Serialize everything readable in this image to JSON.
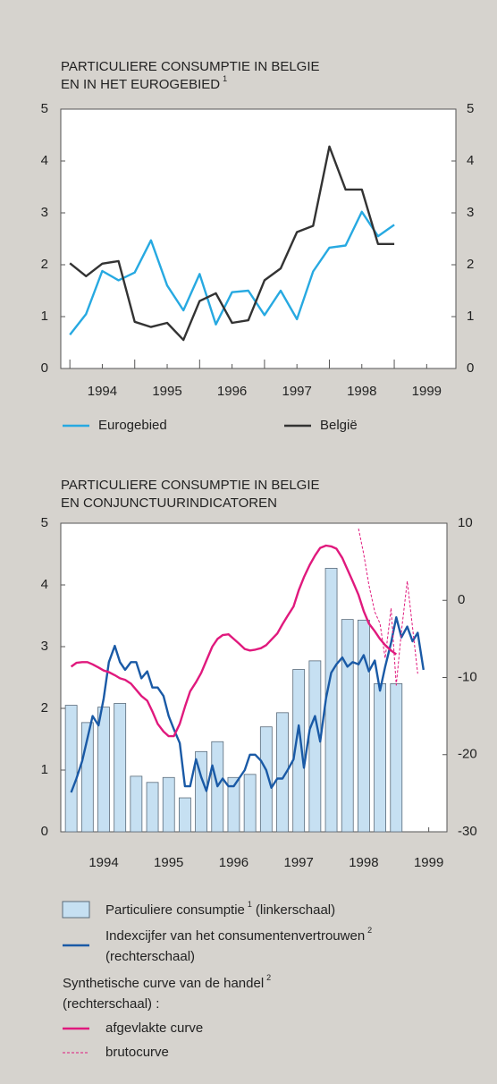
{
  "chart_data": [
    {
      "type": "line",
      "title": [
        "PARTICULIERE CONSUMPTIE IN BELGIE",
        "EN IN HET EUROGEBIED"
      ],
      "title_note": "1",
      "x": [
        1994,
        1994.25,
        1994.5,
        1994.75,
        1995,
        1995.25,
        1995.5,
        1995.75,
        1996,
        1996.25,
        1996.5,
        1996.75,
        1997,
        1997.25,
        1997.5,
        1997.75,
        1998,
        1998.25,
        1998.5,
        1998.75,
        1999
      ],
      "series": [
        {
          "name": "Eurogebied",
          "color": "#27a9e1",
          "values": [
            0.65,
            1.05,
            1.88,
            1.7,
            1.85,
            2.47,
            1.6,
            1.12,
            1.82,
            0.85,
            1.47,
            1.5,
            1.03,
            1.5,
            0.95,
            1.87,
            2.33,
            2.37,
            3.02,
            2.55,
            2.77
          ]
        },
        {
          "name": "België",
          "color": "#333333",
          "values": [
            2.03,
            1.78,
            2.02,
            2.07,
            0.9,
            0.8,
            0.88,
            0.55,
            1.3,
            1.45,
            0.88,
            0.93,
            1.7,
            1.93,
            2.63,
            2.75,
            4.28,
            3.45,
            3.45,
            2.4,
            2.4
          ]
        }
      ],
      "xlim": [
        1993.86,
        1999.95
      ],
      "xticks": [
        {
          "value": 1994.5,
          "label": "1994"
        },
        {
          "value": 1995.5,
          "label": "1995"
        },
        {
          "value": 1996.5,
          "label": "1996"
        },
        {
          "value": 1997.5,
          "label": "1997"
        },
        {
          "value": 1998.5,
          "label": "1998"
        },
        {
          "value": 1999.5,
          "label": "1999"
        }
      ],
      "xminor": [
        1994,
        1995,
        1996,
        1997,
        1998,
        1999
      ],
      "ylim": [
        0,
        5
      ],
      "yticks": [
        0,
        1,
        2,
        3,
        4,
        5
      ],
      "y2lim": [
        0,
        5
      ],
      "y2ticks": [
        0,
        1,
        2,
        3,
        4,
        5
      ]
    },
    {
      "type": "combo",
      "title": [
        "PARTICULIERE CONSUMPTIE IN BELGIE",
        "EN CONJUNCTUURINDICATOREN"
      ],
      "x": [
        1994,
        1994.08,
        1994.17,
        1994.25,
        1994.33,
        1994.42,
        1994.5,
        1994.58,
        1994.67,
        1994.75,
        1994.83,
        1994.92,
        1995,
        1995.08,
        1995.17,
        1995.25,
        1995.33,
        1995.42,
        1995.5,
        1995.58,
        1995.67,
        1995.75,
        1995.83,
        1995.92,
        1996,
        1996.08,
        1996.17,
        1996.25,
        1996.33,
        1996.42,
        1996.5,
        1996.58,
        1996.67,
        1996.75,
        1996.83,
        1996.92,
        1997,
        1997.08,
        1997.17,
        1997.25,
        1997.33,
        1997.42,
        1997.5,
        1997.58,
        1997.67,
        1997.75,
        1997.83,
        1997.92,
        1998,
        1998.08,
        1998.17,
        1998.25,
        1998.33,
        1998.42,
        1998.5,
        1998.58,
        1998.67,
        1998.75,
        1998.83,
        1998.92,
        1999,
        1999.08,
        1999.17,
        1999.25,
        1999.33,
        1999.42
      ],
      "series": [
        {
          "type": "bar",
          "name": "Particuliere consumptie",
          "note": "1",
          "scale_label": "(linkerschaal)",
          "color": "#c6e0f2",
          "x": [
            1994,
            1994.25,
            1994.5,
            1994.75,
            1995,
            1995.25,
            1995.5,
            1995.75,
            1996,
            1996.25,
            1996.5,
            1996.75,
            1997,
            1997.25,
            1997.5,
            1997.75,
            1998,
            1998.25,
            1998.5,
            1998.75,
            1999
          ],
          "values": [
            2.05,
            1.77,
            2.02,
            2.08,
            0.9,
            0.8,
            0.88,
            0.55,
            1.3,
            1.46,
            0.88,
            0.93,
            1.7,
            1.93,
            2.63,
            2.77,
            4.27,
            3.44,
            3.43,
            2.4,
            2.4
          ]
        },
        {
          "type": "line",
          "axis": "y2",
          "name": "Indexcijfer van het consumentenvertrouwen",
          "note": "2",
          "scale_label": "(rechterschaal)",
          "color": "#1a5aa6",
          "values": [
            -24.9,
            -23.1,
            -20.8,
            -17.9,
            -15,
            -16.2,
            -12.7,
            -8,
            -5.9,
            -8,
            -9,
            -8,
            -8,
            -10.1,
            -9.2,
            -11.3,
            -11.3,
            -12.4,
            -15,
            -16.7,
            -18.5,
            -24.1,
            -24.1,
            -20.6,
            -22.9,
            -24.7,
            -21.4,
            -24.1,
            -23.1,
            -24.1,
            -24.1,
            -23.1,
            -22,
            -20,
            -20,
            -20.8,
            -22,
            -24.3,
            -23.1,
            -23.1,
            -22,
            -20.6,
            -16.2,
            -21.7,
            -16.7,
            -15,
            -18.3,
            -12.7,
            -9.4,
            -8.3,
            -7.4,
            -8.6,
            -8,
            -8.3,
            -7.1,
            -9.2,
            -7.8,
            -11.7,
            -8.6,
            -5.5,
            -2.2,
            -4.8,
            -3.4,
            -5.3,
            -4.2,
            -9
          ]
        },
        {
          "type": "line",
          "axis": "y2",
          "name": "afgevlakte curve",
          "color": "#e0197d",
          "values": [
            -8.6,
            -8.1,
            -8,
            -8,
            -8.3,
            -8.7,
            -9.1,
            -9.3,
            -9.7,
            -10.1,
            -10.3,
            -10.8,
            -11.6,
            -12.4,
            -13,
            -14.4,
            -16,
            -17,
            -17.6,
            -17.6,
            -16,
            -13.8,
            -11.8,
            -10.6,
            -9.4,
            -7.8,
            -6,
            -5,
            -4.5,
            -4.4,
            -5,
            -5.6,
            -6.3,
            -6.5,
            -6.4,
            -6.2,
            -5.8,
            -5.1,
            -4.3,
            -3.1,
            -2,
            -0.8,
            1.3,
            3,
            4.6,
            5.8,
            6.8,
            7.1,
            7,
            6.7,
            5.5,
            4,
            2.5,
            0.7,
            -1.4,
            -3,
            -4,
            -5,
            -5.8,
            -6.5,
            -7,
            null,
            null,
            null,
            null,
            null
          ]
        },
        {
          "type": "line",
          "axis": "y2",
          "dash": true,
          "name": "brutocurve",
          "color": "#e0197d",
          "values": [
            null,
            null,
            null,
            null,
            null,
            null,
            null,
            null,
            null,
            null,
            null,
            null,
            null,
            null,
            null,
            null,
            null,
            null,
            null,
            null,
            null,
            null,
            null,
            null,
            null,
            null,
            null,
            null,
            null,
            null,
            null,
            null,
            null,
            null,
            null,
            null,
            null,
            null,
            null,
            null,
            null,
            null,
            null,
            null,
            null,
            null,
            null,
            null,
            null,
            null,
            null,
            null,
            null,
            9.3,
            6,
            2,
            -1.5,
            -3,
            -7.5,
            -1,
            -11,
            -4,
            2.5,
            -3.5,
            -9.5,
            null
          ]
        }
      ],
      "legend_group": {
        "title": "Synthetische curve van de handel",
        "note": "2",
        "scale_label": "(rechterschaal) :"
      },
      "xlim": [
        1993.84,
        1999.78
      ],
      "xticks": [
        {
          "value": 1994.5,
          "label": "1994"
        },
        {
          "value": 1995.5,
          "label": "1995"
        },
        {
          "value": 1996.5,
          "label": "1996"
        },
        {
          "value": 1997.5,
          "label": "1997"
        },
        {
          "value": 1998.5,
          "label": "1998"
        },
        {
          "value": 1999.5,
          "label": "1999"
        }
      ],
      "xminor": [
        1994,
        1995,
        1996,
        1997,
        1998,
        1999
      ],
      "ylim": [
        0,
        5
      ],
      "yticks": [
        0,
        1,
        2,
        3,
        4,
        5
      ],
      "y2lim": [
        -30,
        10
      ],
      "y2ticks": [
        -30,
        -20,
        -10,
        0,
        10
      ]
    }
  ]
}
